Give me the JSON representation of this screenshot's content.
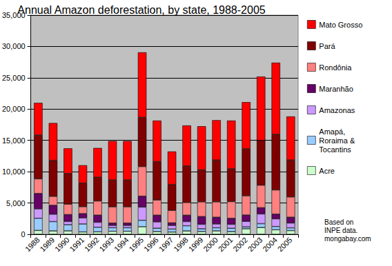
{
  "chart_data": {
    "type": "bar",
    "title": "Annual Amazon deforestation, by state, 1988-2005",
    "categories": [
      "1988",
      "1989",
      "1990",
      "1991",
      "1992",
      "1993",
      "1994",
      "1995",
      "1996",
      "1997",
      "1998",
      "1999",
      "2000",
      "2001",
      "2002",
      "2003",
      "2004",
      "2005"
    ],
    "series": [
      {
        "name": "Mato Grosso",
        "color": "#ff0000",
        "values": [
          5140,
          5960,
          4020,
          2840,
          4674,
          6220,
          6220,
          10391,
          6543,
          5271,
          6466,
          6963,
          6369,
          7703,
          7450,
          10200,
          11450,
          6950
        ]
      },
      {
        "name": "Pará",
        "color": "#800000",
        "values": [
          6990,
          5750,
          4890,
          3780,
          3787,
          4284,
          4284,
          7845,
          6135,
          4139,
          5829,
          5111,
          6671,
          5237,
          7510,
          7145,
          8870,
          5899
        ]
      },
      {
        "name": "Rondônia",
        "color": "#ff8080",
        "values": [
          2340,
          1430,
          1670,
          1110,
          2265,
          2595,
          2595,
          4730,
          2432,
          1986,
          2041,
          2358,
          2465,
          2673,
          3067,
          3597,
          3858,
          3244
        ]
      },
      {
        "name": "Maranhão",
        "color": "#660066",
        "values": [
          2450,
          1420,
          1100,
          670,
          1135,
          372,
          372,
          1745,
          1061,
          409,
          1012,
          1230,
          1065,
          958,
          1014,
          993,
          755,
          922
        ]
      },
      {
        "name": "Amazonas",
        "color": "#cc99ff",
        "values": [
          1510,
          1180,
          520,
          980,
          799,
          370,
          370,
          2114,
          1023,
          589,
          670,
          720,
          612,
          634,
          885,
          1558,
          1232,
          775
        ]
      },
      {
        "name": "Amapá, Roraima & Tocantins",
        "color": "#99ccff",
        "values": [
          1940,
          1490,
          980,
          1270,
          726,
          573,
          573,
          1026,
          534,
          475,
          829,
          436,
          497,
          541,
          296,
          620,
          515,
          437
        ]
      },
      {
        "name": "Acre",
        "color": "#ccffcc",
        "values": [
          620,
          540,
          550,
          380,
          400,
          482,
          482,
          1208,
          433,
          358,
          536,
          441,
          547,
          419,
          883,
          1078,
          728,
          592
        ]
      }
    ],
    "stacked": true,
    "ylim": [
      0,
      35000
    ],
    "yticks": [
      0,
      5000,
      10000,
      15000,
      20000,
      25000,
      30000,
      35000
    ],
    "grid": true,
    "legend": "right",
    "annotations": [
      "Based on",
      "INPE data.",
      "mongabay.com"
    ]
  }
}
